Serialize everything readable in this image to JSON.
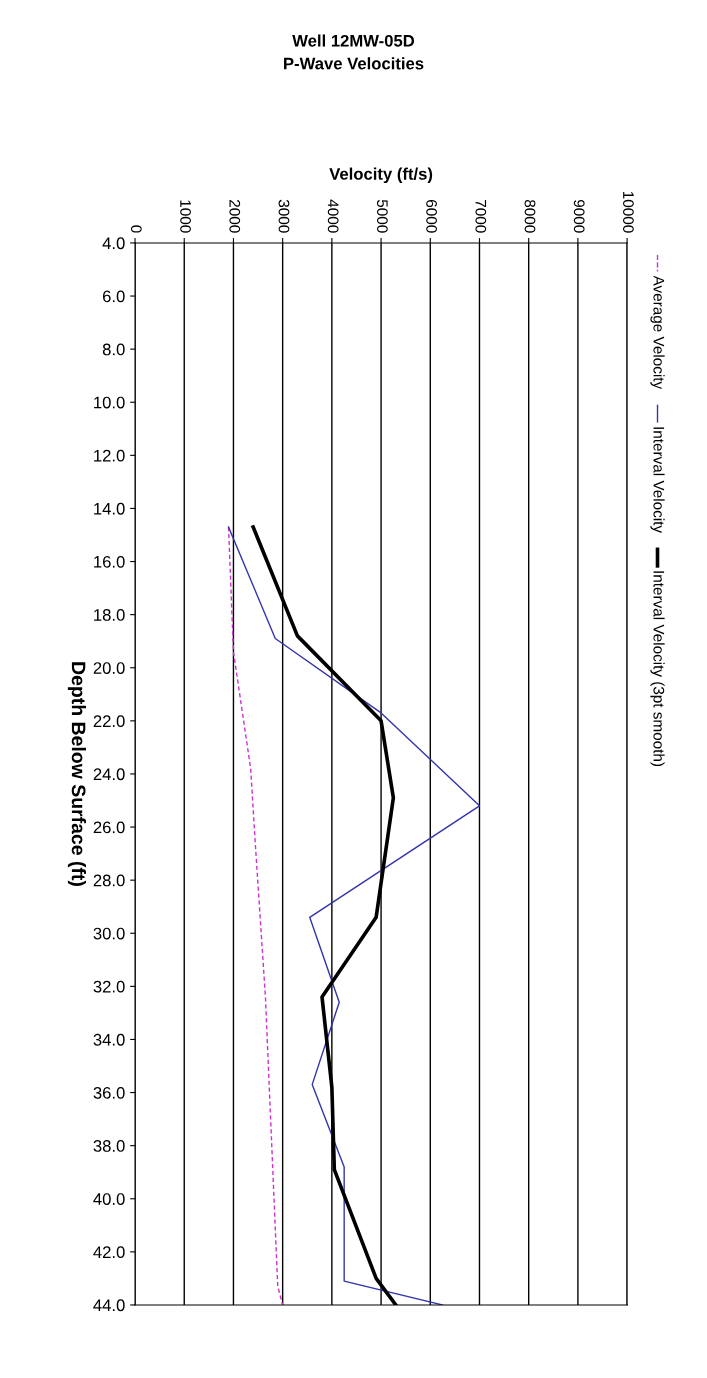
{
  "chart_data": {
    "type": "line",
    "title": "Well 12MW-05D\nP-Wave Velocities",
    "xlabel": "Velocity (ft/s)",
    "ylabel": "Depth Below Surface (ft)",
    "orientation": "horizontal",
    "xlim": [
      0,
      10000
    ],
    "xticks": [
      0,
      1000,
      2000,
      3000,
      4000,
      5000,
      6000,
      7000,
      8000,
      9000,
      10000
    ],
    "ylim": [
      44,
      4
    ],
    "yticks": [
      {
        "value": 4,
        "label": "4.0"
      },
      {
        "value": 6,
        "label": "6.0"
      },
      {
        "value": 8,
        "label": "8.0"
      },
      {
        "value": 10,
        "label": "10.0"
      },
      {
        "value": 12,
        "label": "12.0"
      },
      {
        "value": 14,
        "label": "14.0"
      },
      {
        "value": 16,
        "label": "16.0"
      },
      {
        "value": 18,
        "label": "18.0"
      },
      {
        "value": 20,
        "label": "20.0"
      },
      {
        "value": 22,
        "label": "22.0"
      },
      {
        "value": 24,
        "label": "24.0"
      },
      {
        "value": 26,
        "label": "26.0"
      },
      {
        "value": 28,
        "label": "28.0"
      },
      {
        "value": 30,
        "label": "30.0"
      },
      {
        "value": 32,
        "label": "32.0"
      },
      {
        "value": 34,
        "label": "34.0"
      },
      {
        "value": 36,
        "label": "36.0"
      },
      {
        "value": 38,
        "label": "38.0"
      },
      {
        "value": 40,
        "label": "40.0"
      },
      {
        "value": 42,
        "label": "42.0"
      },
      {
        "value": 44,
        "label": "44.0"
      }
    ],
    "grid": "x",
    "legend": "right",
    "marker": "none",
    "series": [
      {
        "name": "Average Velocity",
        "color": "#cc33cc",
        "line_style": "dashed",
        "x": [
          14.7,
          19.4,
          23.8,
          26.8,
          32.4,
          43.3,
          44.0
        ],
        "values": [
          1900,
          2000,
          2350,
          2450,
          2650,
          2900,
          3000
        ]
      },
      {
        "name": "Interval Velocity",
        "color": "#3333aa",
        "line_style": "solid",
        "x": [
          14.7,
          18.9,
          21.7,
          25.2,
          29.4,
          32.6,
          35.7,
          38.8,
          43.1,
          44.0
        ],
        "values": [
          1900,
          2850,
          5000,
          7000,
          3550,
          4150,
          3600,
          4250,
          4250,
          6250
        ]
      },
      {
        "name": "Interval Velocity (3pt smooth)",
        "color": "#000000",
        "line_style": "solid",
        "x": [
          14.7,
          18.8,
          22.0,
          24.9,
          29.4,
          32.4,
          35.8,
          38.9,
          43.0,
          44.0
        ],
        "values": [
          2400,
          3300,
          5000,
          5250,
          4900,
          3800,
          4000,
          4050,
          4900,
          5300
        ]
      }
    ]
  }
}
